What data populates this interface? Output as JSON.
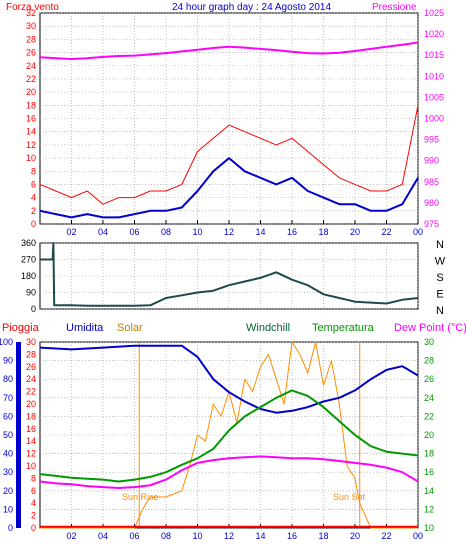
{
  "chart_data": [
    {
      "type": "line",
      "title": "24 hour graph day : 24 Agosto 2014",
      "left_label": "Forza vento",
      "right_label": "Pressione",
      "x_ticks": [
        "02",
        "04",
        "06",
        "08",
        "10",
        "12",
        "14",
        "16",
        "18",
        "20",
        "22",
        "00"
      ],
      "y_left_ticks": [
        "0",
        "2",
        "4",
        "6",
        "8",
        "10",
        "12",
        "14",
        "16",
        "18",
        "20",
        "22",
        "24",
        "26",
        "28",
        "30",
        "32"
      ],
      "y_right_ticks": [
        "975",
        "980",
        "985",
        "990",
        "995",
        "1000",
        "1005",
        "1010",
        "1015",
        "1020",
        "1025"
      ],
      "ylim_left": [
        0,
        32
      ],
      "ylim_right": [
        975,
        1025
      ],
      "colors": {
        "gust": "#ff0000",
        "speed": "#0000cc",
        "pressure": "#ff00ff"
      },
      "series": [
        {
          "name": "Pressione",
          "axis": "right",
          "x": [
            0,
            1,
            2,
            3,
            4,
            5,
            6,
            7,
            8,
            9,
            10,
            11,
            12,
            13,
            14,
            15,
            16,
            17,
            18,
            19,
            20,
            21,
            22,
            23,
            24
          ],
          "values": [
            1014.5,
            1014.3,
            1014.1,
            1014.3,
            1014.6,
            1014.8,
            1014.9,
            1015.2,
            1015.5,
            1015.9,
            1016.3,
            1016.7,
            1017.0,
            1016.8,
            1016.5,
            1016.2,
            1015.8,
            1015.5,
            1015.4,
            1015.6,
            1016.0,
            1016.5,
            1017.0,
            1017.5,
            1018.0
          ]
        },
        {
          "name": "gust",
          "axis": "left",
          "x": [
            0,
            1,
            2,
            3,
            4,
            5,
            6,
            7,
            8,
            9,
            10,
            11,
            12,
            13,
            14,
            15,
            16,
            17,
            18,
            19,
            20,
            21,
            22,
            23,
            24
          ],
          "values": [
            6,
            5,
            4,
            5,
            3,
            4,
            4,
            5,
            5,
            6,
            11,
            13,
            15,
            14,
            13,
            12,
            13,
            11,
            9,
            7,
            6,
            5,
            5,
            6,
            18
          ]
        },
        {
          "name": "speed",
          "axis": "left",
          "x": [
            0,
            1,
            2,
            3,
            4,
            5,
            6,
            7,
            8,
            9,
            10,
            11,
            12,
            13,
            14,
            15,
            16,
            17,
            18,
            19,
            20,
            21,
            22,
            23,
            24
          ],
          "values": [
            2,
            1.5,
            1,
            1.5,
            1,
            1,
            1.5,
            2,
            2,
            2.5,
            5,
            8,
            10,
            8,
            7,
            6,
            7,
            5,
            4,
            3,
            3,
            2,
            2,
            3,
            7
          ]
        }
      ]
    },
    {
      "type": "line",
      "compass_labels": [
        "N",
        "W",
        "S",
        "E",
        "N"
      ],
      "y_ticks": [
        "0",
        "90",
        "180",
        "270",
        "360"
      ],
      "ylim": [
        0,
        360
      ],
      "color": "#1f4a4a",
      "series": [
        {
          "name": "direction",
          "x": [
            0,
            0.8,
            0.85,
            0.9,
            1,
            2,
            3,
            4,
            5,
            6,
            7,
            8,
            9,
            10,
            11,
            12,
            13,
            14,
            15,
            16,
            17,
            18,
            19,
            20,
            21,
            22,
            23,
            24
          ],
          "values": [
            270,
            270,
            360,
            20,
            20,
            20,
            18,
            18,
            18,
            18,
            20,
            60,
            75,
            90,
            100,
            130,
            150,
            170,
            200,
            160,
            130,
            80,
            60,
            40,
            35,
            30,
            50,
            60
          ]
        }
      ]
    },
    {
      "type": "line",
      "labels": {
        "pioggia": "Pioggia",
        "umidita": "Umidita",
        "solar": "Solar",
        "windchill": "Windchill",
        "temperatura": "Temperatura",
        "dewpoint": "Dew Point (°C)"
      },
      "colors": {
        "pioggia": "#ff0000",
        "umidita": "#0000cc",
        "solar": "#ff8c00",
        "windchill": "#006633",
        "temperatura": "#009900",
        "dewpoint": "#ff00ff"
      },
      "annotations": {
        "sunrise": "Sun Rise",
        "sunset": "Sun Set"
      },
      "sunrise_x": 6.3,
      "sunset_x": 20.3,
      "x_ticks": [
        "02",
        "04",
        "06",
        "08",
        "10",
        "12",
        "14",
        "16",
        "18",
        "20",
        "22",
        "00"
      ],
      "y_left1_ticks": [
        "0",
        "10",
        "20",
        "30",
        "40",
        "50",
        "60",
        "70",
        "80",
        "90",
        "100"
      ],
      "y_left2_ticks": [
        "0",
        "2",
        "4",
        "6",
        "8",
        "10",
        "12",
        "14",
        "16",
        "18",
        "20",
        "22",
        "24",
        "26",
        "28",
        "30"
      ],
      "y_right_ticks": [
        "10",
        "12",
        "14",
        "16",
        "18",
        "20",
        "22",
        "24",
        "26",
        "28",
        "30"
      ],
      "ylim_left1": [
        0,
        100
      ],
      "ylim_left2": [
        0,
        30
      ],
      "ylim_right": [
        10,
        30
      ],
      "series": [
        {
          "name": "Umidita",
          "axis": "left1",
          "x": [
            0,
            2,
            4,
            6,
            8,
            9,
            10,
            11,
            12,
            13,
            14,
            15,
            16,
            17,
            18,
            19,
            20,
            21,
            22,
            23,
            24
          ],
          "values": [
            97,
            96,
            97,
            98,
            98,
            98,
            92,
            80,
            73,
            68,
            64,
            62,
            63,
            65,
            68,
            70,
            74,
            80,
            85,
            87,
            82
          ]
        },
        {
          "name": "Temperatura",
          "axis": "right",
          "x": [
            0,
            1,
            2,
            3,
            4,
            5,
            6,
            7,
            8,
            9,
            10,
            11,
            12,
            13,
            14,
            15,
            16,
            17,
            18,
            19,
            20,
            21,
            22,
            23,
            24
          ],
          "values": [
            15.8,
            15.6,
            15.4,
            15.3,
            15.2,
            15.0,
            15.2,
            15.5,
            16.0,
            16.8,
            17.5,
            18.5,
            20.5,
            22.0,
            23.0,
            24.0,
            24.8,
            24.2,
            23.0,
            21.5,
            20.0,
            18.8,
            18.2,
            18.0,
            17.8
          ]
        },
        {
          "name": "Dew Point",
          "axis": "right",
          "x": [
            0,
            1,
            2,
            3,
            4,
            5,
            6,
            7,
            8,
            9,
            10,
            11,
            12,
            13,
            14,
            15,
            16,
            17,
            18,
            19,
            20,
            21,
            22,
            23,
            24
          ],
          "values": [
            15.0,
            14.8,
            14.7,
            14.5,
            14.4,
            14.3,
            14.4,
            14.6,
            15.2,
            16.2,
            17.0,
            17.3,
            17.5,
            17.6,
            17.7,
            17.6,
            17.5,
            17.5,
            17.4,
            17.2,
            17.0,
            16.8,
            16.5,
            16.0,
            15.0
          ]
        },
        {
          "name": "Solar",
          "axis": "left2",
          "x": [
            0,
            6,
            6.5,
            7,
            8,
            9,
            9.5,
            10,
            10.5,
            11,
            11.5,
            12,
            12.5,
            13,
            13.5,
            14,
            14.5,
            15,
            15.5,
            16,
            16.5,
            17,
            17.5,
            18,
            18.5,
            19,
            19.5,
            20,
            20.3,
            21,
            24
          ],
          "values": [
            0,
            0,
            3,
            5,
            5,
            6,
            10,
            15,
            14,
            20,
            18,
            22,
            17,
            24,
            22,
            26,
            28,
            24,
            20,
            30,
            28,
            25,
            30,
            23,
            27,
            20,
            10,
            8,
            4,
            0,
            0
          ]
        },
        {
          "name": "Pioggia",
          "axis": "left2",
          "x": [
            0,
            24
          ],
          "values": [
            0.2,
            0.2
          ]
        }
      ]
    }
  ]
}
